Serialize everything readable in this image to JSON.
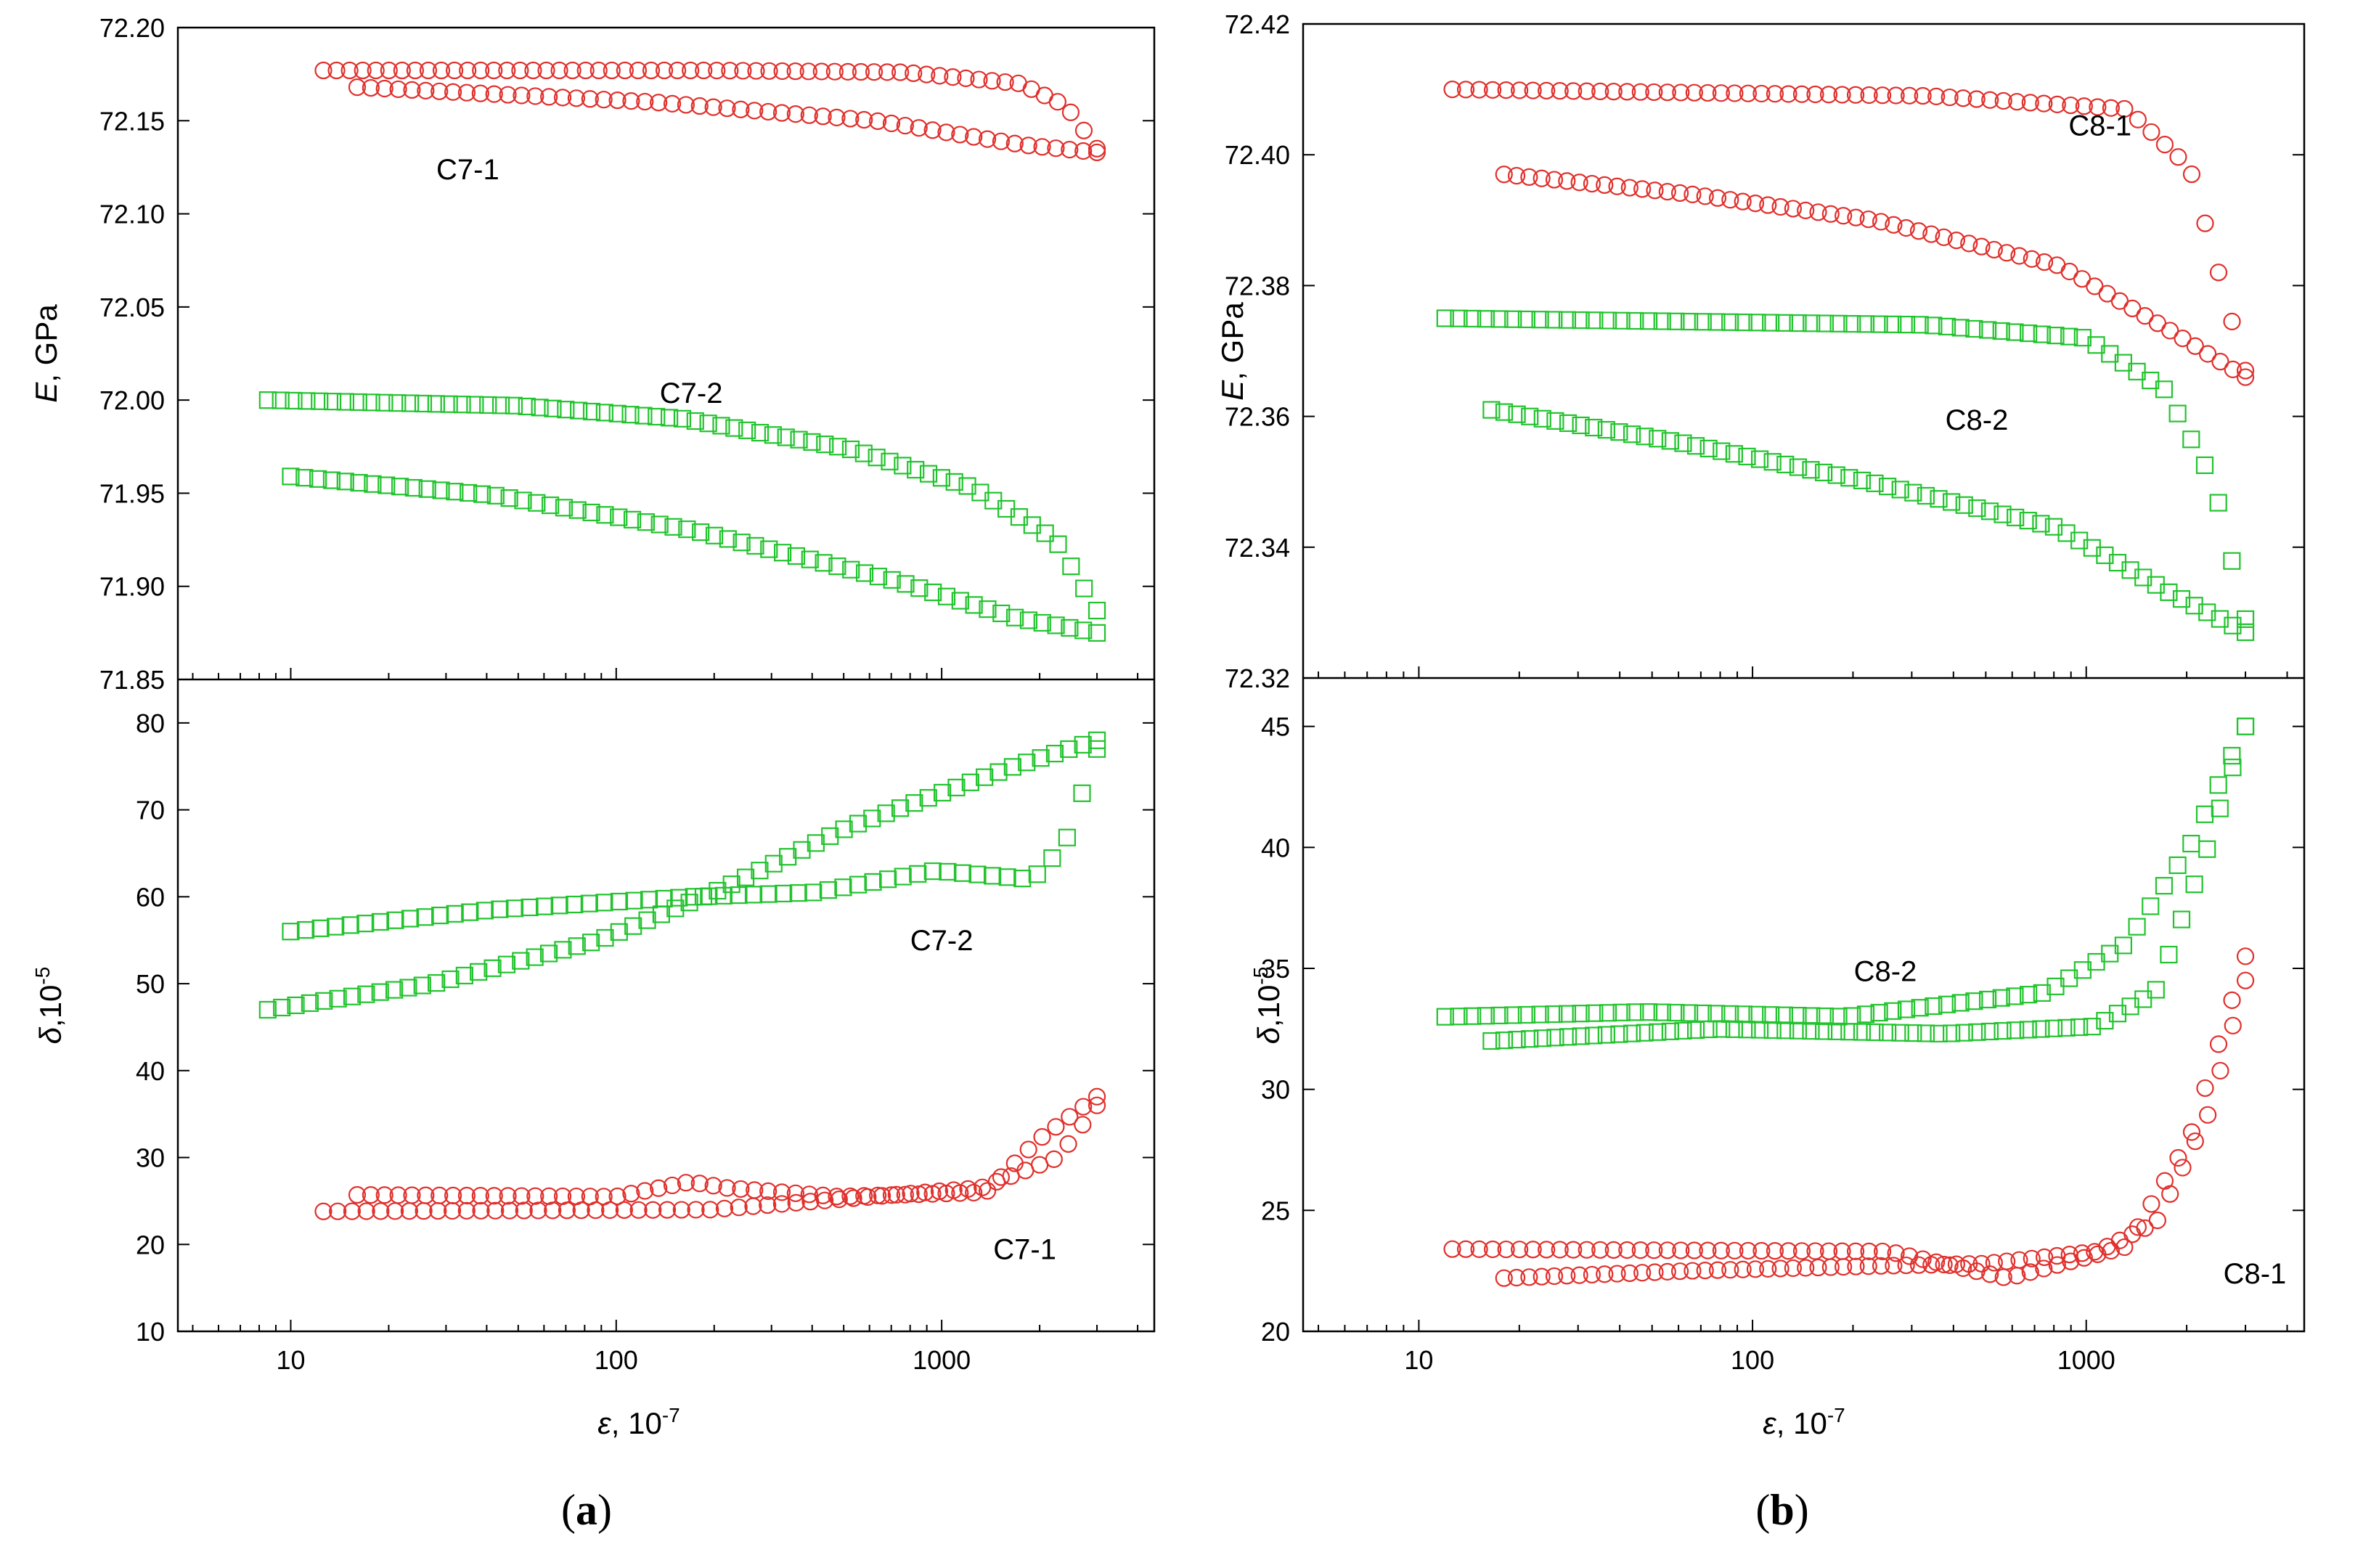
{
  "chart_data": [
    {
      "id": "a-top",
      "type": "scatter",
      "panel": "a",
      "xscale": "log",
      "xlim": [
        4.5,
        4500
      ],
      "ylim": [
        71.85,
        72.2
      ],
      "yticks": [
        "71.85",
        "71.90",
        "71.95",
        "72.00",
        "72.05",
        "72.10",
        "72.15",
        "72.20"
      ],
      "ylabel_var": "E",
      "ylabel_rest": ", GPa",
      "series": [
        {
          "name": "C7-1",
          "color": "#e0302c",
          "marker": "circle",
          "label_at": [
            35,
            72.124
          ],
          "branches": [
            {
              "x0": 12.6,
              "x1": 3000,
              "n": 60,
              "keys": [
                [
                  0,
                  72.177
                ],
                [
                  0.5,
                  72.177
                ],
                [
                  0.75,
                  72.176
                ],
                [
                  0.9,
                  72.17
                ],
                [
                  0.96,
                  72.158
                ],
                [
                  1,
                  72.135
                ]
              ]
            },
            {
              "x0": 3000,
              "x1": 16,
              "n": 55,
              "keys": [
                [
                  0,
                  72.133
                ],
                [
                  0.1,
                  72.137
                ],
                [
                  0.3,
                  72.15
                ],
                [
                  0.6,
                  72.16
                ],
                [
                  1,
                  72.168
                ]
              ]
            }
          ]
        },
        {
          "name": "C7-2",
          "color": "#22c32e",
          "marker": "square",
          "label_at": [
            170,
            72.004
          ],
          "branches": [
            {
              "x0": 8.5,
              "x1": 3000,
              "n": 65,
              "keys": [
                [
                  0,
                  72.0
                ],
                [
                  0.3,
                  71.997
                ],
                [
                  0.5,
                  71.99
                ],
                [
                  0.7,
                  71.974
                ],
                [
                  0.85,
                  71.953
                ],
                [
                  0.95,
                  71.925
                ],
                [
                  1,
                  71.887
                ]
              ]
            },
            {
              "x0": 3000,
              "x1": 10,
              "n": 60,
              "keys": [
                [
                  0,
                  71.875
                ],
                [
                  0.1,
                  71.883
                ],
                [
                  0.25,
                  71.903
                ],
                [
                  0.5,
                  71.93
                ],
                [
                  0.75,
                  71.949
                ],
                [
                  1,
                  71.959
                ]
              ]
            }
          ]
        }
      ]
    },
    {
      "id": "a-bottom",
      "type": "scatter",
      "panel": "a",
      "xscale": "log",
      "xlim": [
        4.5,
        4500
      ],
      "ylim": [
        10,
        85
      ],
      "yticks": [
        "10",
        "20",
        "30",
        "40",
        "50",
        "60",
        "70",
        "80"
      ],
      "ylabel_var": "δ",
      "ylabel_rest": ",10",
      "ylabel_exp": "-5",
      "xticks": [
        "10",
        "100",
        "1000"
      ],
      "xlabel_var": "ε",
      "xlabel_rest": ", 10",
      "xlabel_exp": "-7",
      "series": [
        {
          "name": "C7-2",
          "color": "#22c32e",
          "marker": "square",
          "label_at": [
            1000,
            55
          ],
          "branches": [
            {
              "x0": 10,
              "x1": 3000,
              "n": 55,
              "keys": [
                [
                  0,
                  56
                ],
                [
                  0.25,
                  58.5
                ],
                [
                  0.5,
                  60
                ],
                [
                  0.65,
                  60.5
                ],
                [
                  0.8,
                  63
                ],
                [
                  0.92,
                  62
                ],
                [
                  0.96,
                  66
                ],
                [
                  1,
                  77
                ]
              ]
            },
            {
              "x0": 3000,
              "x1": 8.5,
              "n": 60,
              "keys": [
                [
                  0,
                  78
                ],
                [
                  0.1,
                  75
                ],
                [
                  0.3,
                  68
                ],
                [
                  0.45,
                  61
                ],
                [
                  0.6,
                  55
                ],
                [
                  0.8,
                  50
                ],
                [
                  1,
                  47
                ]
              ]
            }
          ]
        },
        {
          "name": "C7-1",
          "color": "#e0302c",
          "marker": "circle",
          "label_at": [
            1800,
            19.5
          ],
          "branches": [
            {
              "x0": 12.6,
              "x1": 3000,
              "n": 55,
              "keys": [
                [
                  0,
                  23.8
                ],
                [
                  0.5,
                  24
                ],
                [
                  0.85,
                  26.5
                ],
                [
                  0.95,
                  30
                ],
                [
                  1,
                  36
                ]
              ]
            },
            {
              "x0": 3000,
              "x1": 16,
              "n": 55,
              "keys": [
                [
                  0,
                  37
                ],
                [
                  0.08,
                  32
                ],
                [
                  0.15,
                  26
                ],
                [
                  0.35,
                  25.5
                ],
                [
                  0.5,
                  26.5
                ],
                [
                  0.55,
                  27.2
                ],
                [
                  0.65,
                  25.5
                ],
                [
                  1,
                  25.7
                ]
              ]
            }
          ]
        }
      ]
    },
    {
      "id": "b-top",
      "type": "scatter",
      "panel": "b",
      "xscale": "log",
      "xlim": [
        4.5,
        4500
      ],
      "ylim": [
        72.32,
        72.42
      ],
      "yticks": [
        "72.32",
        "72.34",
        "72.36",
        "72.38",
        "72.40",
        "72.42"
      ],
      "ylabel_var": "E",
      "ylabel_rest": ", GPa",
      "series": [
        {
          "name": "C8-1",
          "color": "#e0302c",
          "marker": "circle",
          "label_at": [
            1100,
            72.4045
          ],
          "branches": [
            {
              "x0": 12.6,
              "x1": 3000,
              "n": 60,
              "keys": [
                [
                  0,
                  72.41
                ],
                [
                  0.6,
                  72.409
                ],
                [
                  0.85,
                  72.407
                ],
                [
                  0.93,
                  72.398
                ],
                [
                  1,
                  72.367
                ]
              ]
            },
            {
              "x0": 3000,
              "x1": 18,
              "n": 60,
              "keys": [
                [
                  0,
                  72.366
                ],
                [
                  0.1,
                  72.373
                ],
                [
                  0.25,
                  72.383
                ],
                [
                  0.5,
                  72.39
                ],
                [
                  0.75,
                  72.394
                ],
                [
                  1,
                  72.397
                ]
              ]
            }
          ]
        },
        {
          "name": "C8-2",
          "color": "#22c32e",
          "marker": "square",
          "label_at": [
            470,
            72.3595
          ],
          "branches": [
            {
              "x0": 12,
              "x1": 3000,
              "n": 60,
              "keys": [
                [
                  0,
                  72.375
                ],
                [
                  0.6,
                  72.374
                ],
                [
                  0.8,
                  72.372
                ],
                [
                  0.9,
                  72.364
                ],
                [
                  0.96,
                  72.35
                ],
                [
                  1,
                  72.329
                ]
              ]
            },
            {
              "x0": 3000,
              "x1": 16.5,
              "n": 60,
              "keys": [
                [
                  0,
                  72.327
                ],
                [
                  0.1,
                  72.333
                ],
                [
                  0.25,
                  72.343
                ],
                [
                  0.5,
                  72.35
                ],
                [
                  0.75,
                  72.356
                ],
                [
                  1,
                  72.361
                ]
              ]
            }
          ]
        }
      ]
    },
    {
      "id": "b-bottom",
      "type": "scatter",
      "panel": "b",
      "xscale": "log",
      "xlim": [
        4.5,
        4500
      ],
      "ylim": [
        20,
        47
      ],
      "yticks": [
        "20",
        "25",
        "30",
        "35",
        "40",
        "45"
      ],
      "ylabel_var": "δ",
      "ylabel_rest": ",10",
      "ylabel_exp": "-5",
      "xticks": [
        "10",
        "100",
        "1000"
      ],
      "xlabel_var": "ε",
      "xlabel_rest": ", 10",
      "xlabel_exp": "-7",
      "series": [
        {
          "name": "C8-2",
          "color": "#22c32e",
          "marker": "square",
          "label_at": [
            250,
            34.9
          ],
          "branches": [
            {
              "x0": 12,
              "x1": 3000,
              "n": 60,
              "keys": [
                [
                  0,
                  33
                ],
                [
                  0.25,
                  33.2
                ],
                [
                  0.5,
                  33
                ],
                [
                  0.75,
                  34
                ],
                [
                  0.85,
                  36
                ],
                [
                  0.93,
                  40
                ],
                [
                  1,
                  45
                ]
              ]
            },
            {
              "x0": 3000,
              "x1": 16.5,
              "n": 60,
              "keys": [
                [
                  0,
                  45
                ],
                [
                  0.05,
                  40
                ],
                [
                  0.12,
                  34
                ],
                [
                  0.2,
                  32.6
                ],
                [
                  0.4,
                  32.3
                ],
                [
                  0.7,
                  32.5
                ],
                [
                  1,
                  32
                ]
              ]
            }
          ]
        },
        {
          "name": "C8-1",
          "color": "#e0302c",
          "marker": "circle",
          "label_at": [
            3200,
            22.4
          ],
          "branches": [
            {
              "x0": 12.6,
              "x1": 3000,
              "n": 60,
              "keys": [
                [
                  0,
                  23.4
                ],
                [
                  0.55,
                  23.3
                ],
                [
                  0.7,
                  22.2
                ],
                [
                  0.85,
                  23.5
                ],
                [
                  0.93,
                  28
                ],
                [
                  1,
                  35.5
                ]
              ]
            },
            {
              "x0": 3000,
              "x1": 18,
              "n": 60,
              "keys": [
                [
                  0,
                  34.5
                ],
                [
                  0.05,
                  29
                ],
                [
                  0.12,
                  24.5
                ],
                [
                  0.2,
                  23.3
                ],
                [
                  0.35,
                  22.8
                ],
                [
                  0.5,
                  22.7
                ],
                [
                  0.75,
                  22.5
                ],
                [
                  1,
                  22.2
                ]
              ]
            }
          ]
        }
      ]
    }
  ],
  "panel_labels": {
    "a": {
      "open": "(",
      "letter": "a",
      "close": ")"
    },
    "b": {
      "open": "(",
      "letter": "b",
      "close": ")"
    }
  }
}
